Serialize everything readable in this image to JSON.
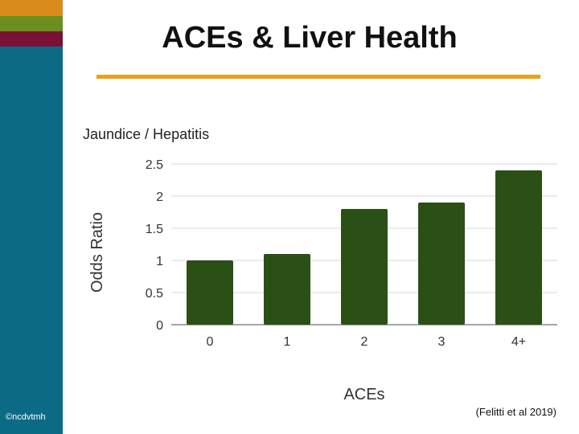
{
  "slide": {
    "title": "ACEs & Liver Health",
    "copyright": "©ncdvtmh",
    "citation": "(Felitti et al 2019)"
  },
  "colors": {
    "sidebar": "#0b6b85",
    "stripe_orange": "#d98c1c",
    "stripe_green": "#6a8f1e",
    "stripe_maroon": "#7a1238",
    "title_rule": "#e8a317",
    "bar": "#2a5016"
  },
  "chart_data": {
    "type": "bar",
    "title": "Jaundice / Hepatitis",
    "xlabel": "ACEs",
    "ylabel": "Odds Ratio",
    "categories": [
      "0",
      "1",
      "2",
      "3",
      "4+"
    ],
    "values": [
      1.0,
      1.1,
      1.8,
      1.9,
      2.4
    ],
    "ylim": [
      0,
      2.5
    ],
    "yticks": [
      "0",
      "0.5",
      "1",
      "1.5",
      "2",
      "2.5"
    ],
    "grid": true,
    "legend": "none"
  }
}
